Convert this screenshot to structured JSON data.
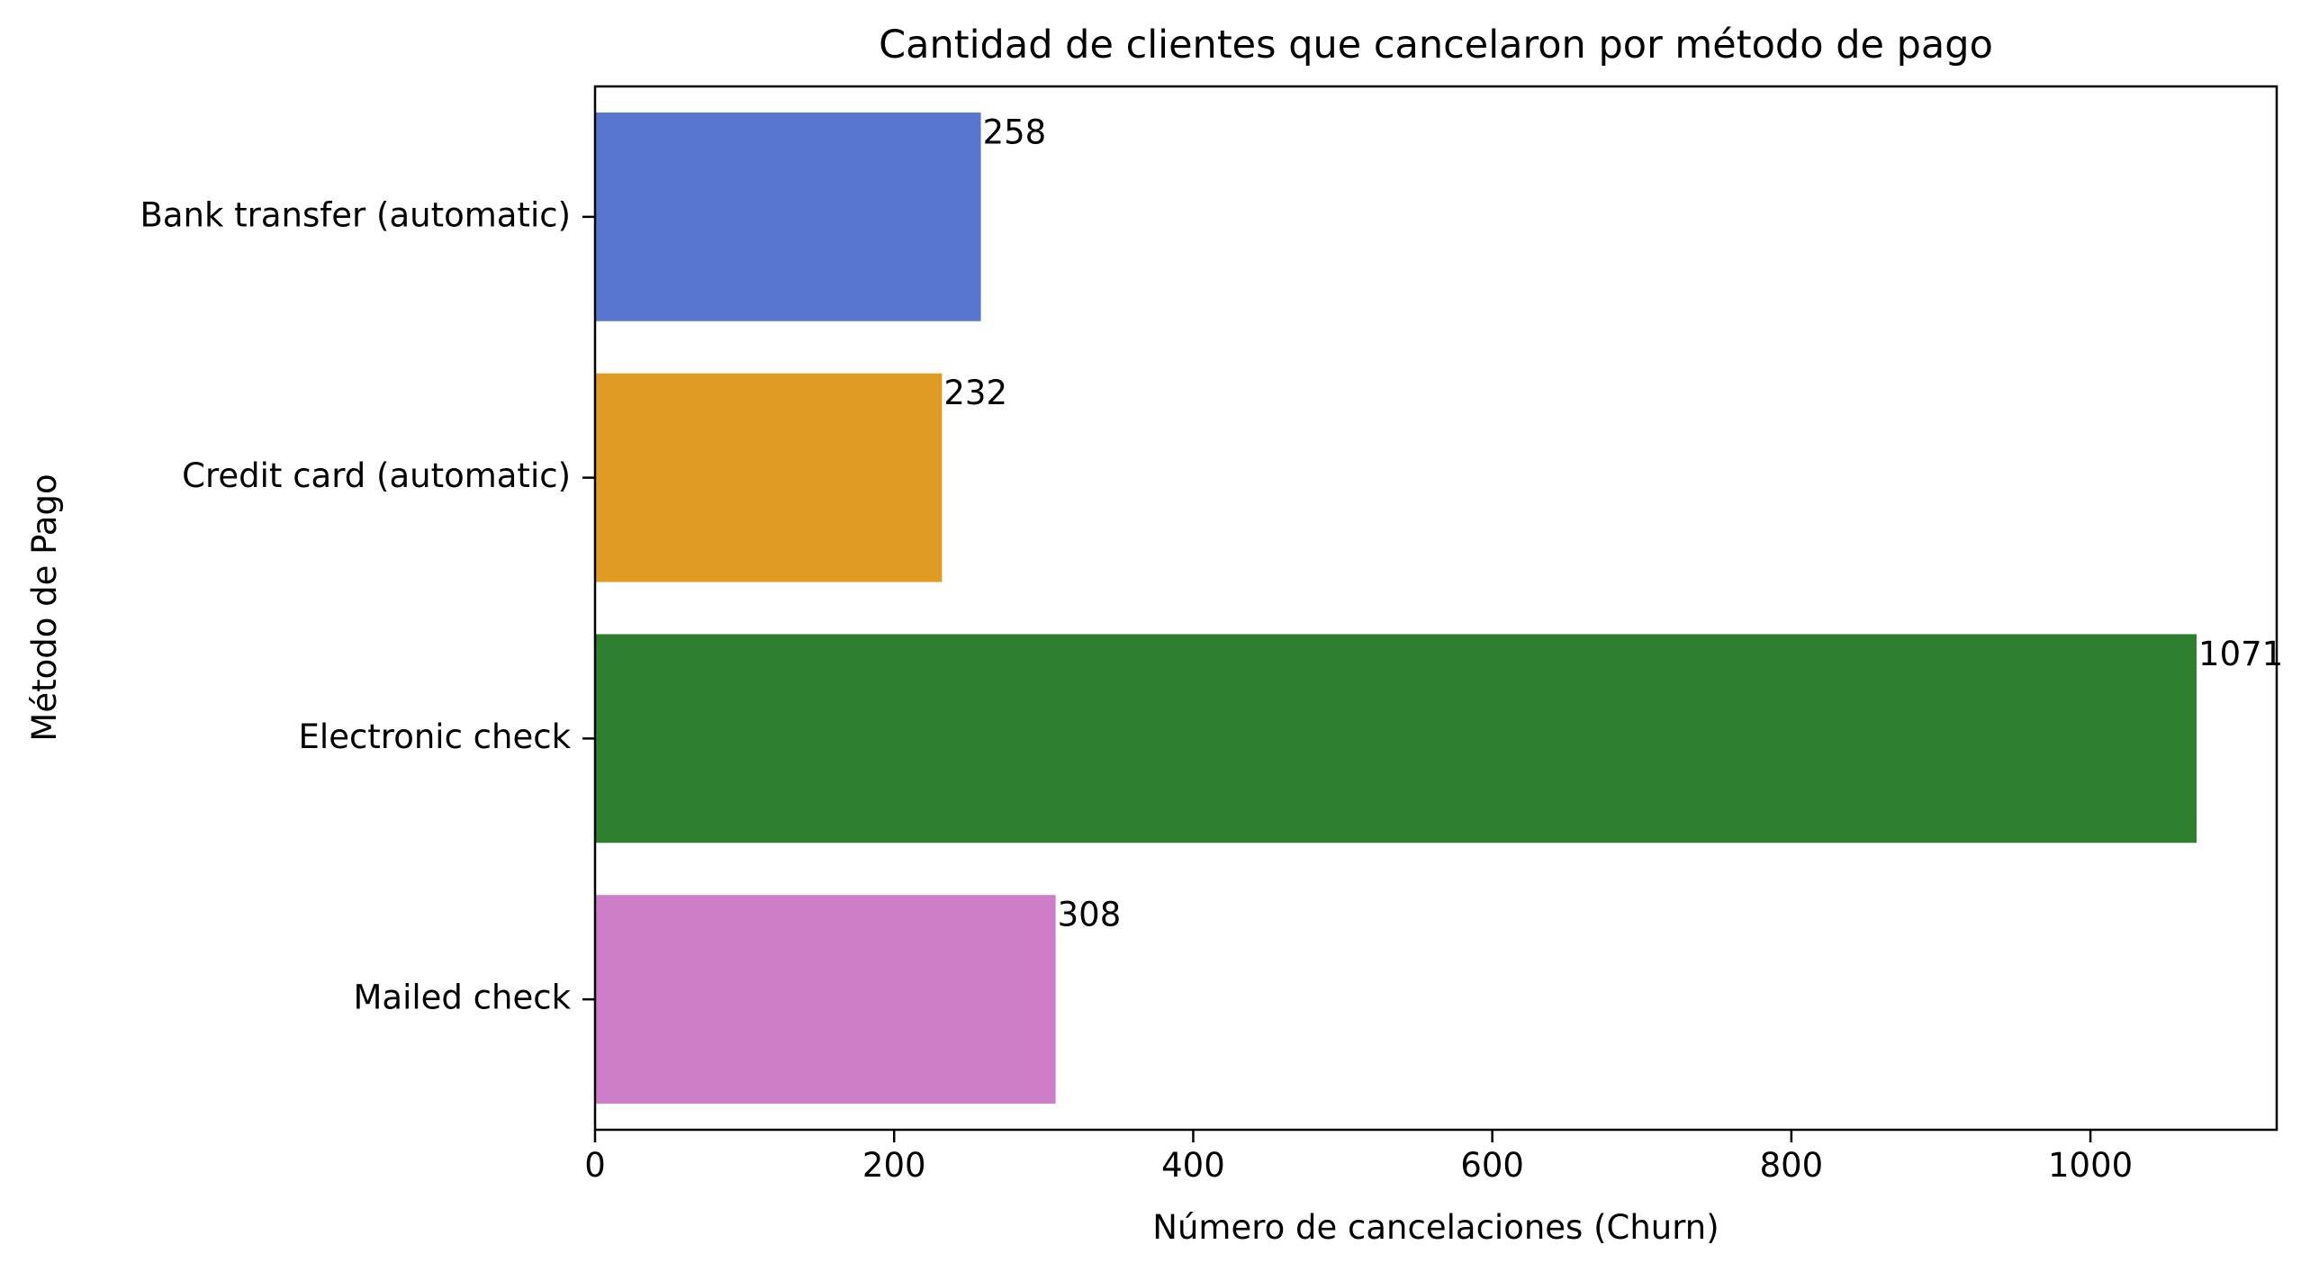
{
  "chart_data": {
    "type": "bar",
    "orientation": "horizontal",
    "title": "Cantidad de clientes que cancelaron por método de pago",
    "xlabel": "Número de cancelaciones (Churn)",
    "ylabel": "Método de Pago",
    "categories": [
      "Bank transfer (automatic)",
      "Credit card (automatic)",
      "Electronic check",
      "Mailed check"
    ],
    "values": [
      258,
      232,
      1071,
      308
    ],
    "data_labels": [
      "258",
      "232",
      "1071",
      "308"
    ],
    "colors": [
      "#5875D0",
      "#E09C22",
      "#2F7F31",
      "#CE7EC8"
    ],
    "xlim": [
      0,
      1124.55
    ],
    "xticks": [
      0,
      200,
      400,
      600,
      800,
      1000
    ],
    "xtick_labels": [
      "0",
      "200",
      "400",
      "600",
      "800",
      "1000"
    ],
    "grid": false,
    "legend": "none"
  }
}
